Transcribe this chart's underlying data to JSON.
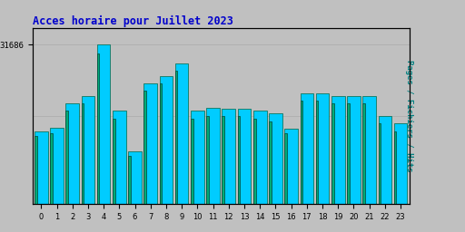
{
  "title": "Acces horaire pour Juillet 2023",
  "title_color": "#0000cc",
  "title_fontsize": 8.5,
  "ylabel": "Pages / Fichiers / Hits",
  "ylabel_color": "#008080",
  "ylabel_fontsize": 6.5,
  "background_color": "#c0c0c0",
  "plot_background": "#c0c0c0",
  "bar_face_color": "#00ccff",
  "bar_edge_color": "#006644",
  "bar2_face_color": "#00aa77",
  "bar2_edge_color": "#004433",
  "ytick_label": "31686",
  "categories": [
    0,
    1,
    2,
    3,
    4,
    5,
    6,
    7,
    8,
    9,
    10,
    11,
    12,
    13,
    14,
    15,
    16,
    17,
    18,
    19,
    20,
    21,
    22,
    23
  ],
  "hits": [
    14500,
    15200,
    20000,
    21500,
    31686,
    18500,
    10500,
    24000,
    25500,
    28000,
    18500,
    19200,
    19000,
    19000,
    18500,
    18000,
    15000,
    22000,
    22000,
    21500,
    21500,
    21500,
    17500,
    16000
  ],
  "pages": [
    13500,
    14000,
    18500,
    20000,
    30000,
    17000,
    9500,
    22500,
    24000,
    26500,
    17000,
    17500,
    17500,
    17500,
    17000,
    16500,
    14000,
    20500,
    20500,
    20000,
    20000,
    20000,
    16000,
    14500
  ],
  "ylim": [
    0,
    35000
  ],
  "ytick_val": 31686,
  "border_color": "#000000",
  "grid_color": "#aaaaaa",
  "xtick_fontsize": 6,
  "ytick_fontsize": 6.5
}
